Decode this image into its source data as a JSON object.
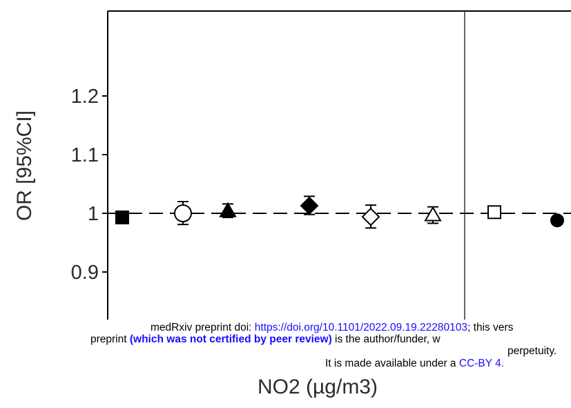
{
  "chart_data": {
    "type": "scatter",
    "title": "",
    "xlabel": "NO2 (µg/m3)",
    "ylabel": "OR [95%CI]",
    "ylim": [
      0.9,
      1.2
    ],
    "yticks": [
      {
        "value": 0.9,
        "label": "0.9"
      },
      {
        "value": 1.0,
        "label": "1"
      },
      {
        "value": 1.1,
        "label": "1.1"
      },
      {
        "value": 1.2,
        "label": "1.2"
      }
    ],
    "reference_line": {
      "y": 1.0,
      "style": "dashed"
    },
    "grid": false,
    "panel_divider": true,
    "points": [
      {
        "marker": "square-filled",
        "y": 0.993,
        "ci": [
          0.985,
          1.003
        ]
      },
      {
        "marker": "circle-open",
        "y": 1.0,
        "ci": [
          0.981,
          1.02
        ]
      },
      {
        "marker": "triangle-filled",
        "y": 1.004,
        "ci": [
          0.993,
          1.016
        ]
      },
      {
        "marker": "diamond-filled",
        "y": 1.013,
        "ci": [
          0.998,
          1.029
        ]
      },
      {
        "marker": "diamond-open",
        "y": 0.994,
        "ci": [
          0.975,
          1.014
        ]
      },
      {
        "marker": "triangle-open",
        "y": 0.997,
        "ci": [
          0.983,
          1.011
        ]
      },
      {
        "marker": "square-open",
        "y": 1.002,
        "ci": [
          0.998,
          1.005
        ]
      },
      {
        "marker": "circle-filled",
        "y": 0.988,
        "ci": [
          0.982,
          0.994
        ]
      }
    ]
  },
  "notice": {
    "line1_prefix": "medRxiv preprint doi: ",
    "line1_link": "https://doi.org/10.1101/2022.09.19.22280103",
    "line1_suffix": "; this vers",
    "line2_prefix": "preprint ",
    "line2_bold": "(which was not certified by peer review)",
    "line2_suffix": " is the author/funder, w",
    "line3": "perpetuity.",
    "line4_prefix": "It is made available under a ",
    "line4_link": "CC-BY 4."
  }
}
